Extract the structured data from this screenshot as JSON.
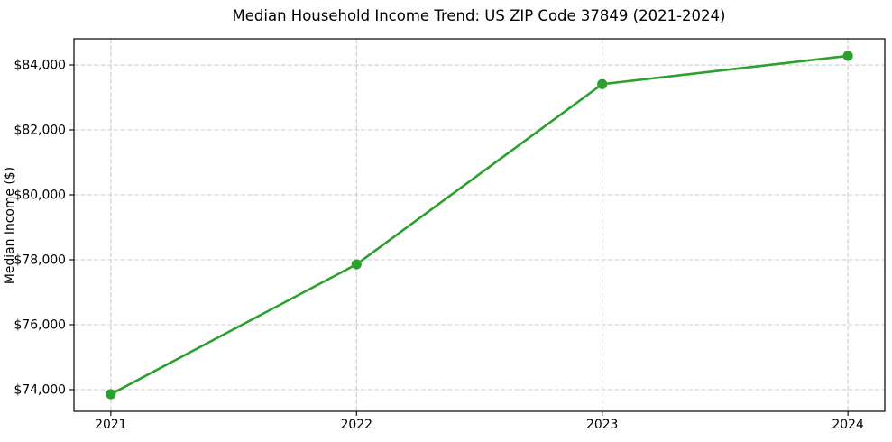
{
  "chart_data": {
    "type": "line",
    "title": "Median Household Income Trend: US ZIP Code 37849 (2021-2024)",
    "xlabel": "",
    "ylabel": "Median Income ($)",
    "x": [
      2021,
      2022,
      2023,
      2024
    ],
    "values": [
      73860,
      77860,
      83410,
      84280
    ],
    "categories": [
      "2021",
      "2022",
      "2023",
      "2024"
    ],
    "xlim": [
      2020.85,
      2024.15
    ],
    "ylim": [
      73333,
      84806
    ],
    "yticks": [
      74000,
      76000,
      78000,
      80000,
      82000,
      84000
    ],
    "ytick_labels": [
      "$74,000",
      "$76,000",
      "$78,000",
      "$80,000",
      "$82,000",
      "$84,000"
    ],
    "xticks": [
      2021,
      2022,
      2023,
      2024
    ],
    "xtick_labels": [
      "2021",
      "2022",
      "2023",
      "2024"
    ],
    "grid": true,
    "grid_style": "dashed",
    "legend": "none",
    "colors": {
      "line": "#2ca02c",
      "marker": "#2ca02c",
      "grid": "#cccccc",
      "spine": "#000000",
      "background": "#ffffff",
      "text": "#000000"
    }
  }
}
